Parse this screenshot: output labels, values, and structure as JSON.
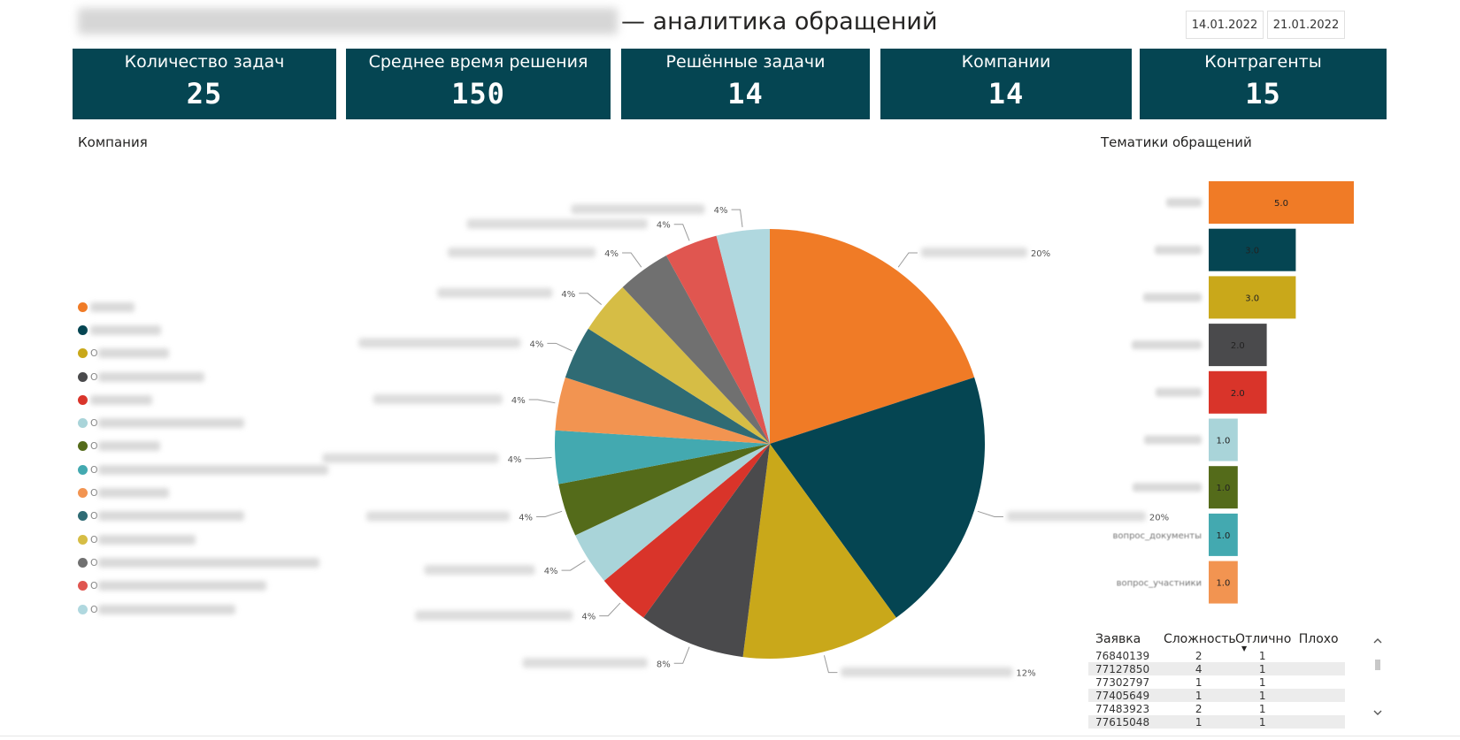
{
  "header": {
    "title_suffix": "— аналитика обращений",
    "date_from": "14.01.2022",
    "date_to": "21.01.2022"
  },
  "cards": [
    {
      "label": "Количество задач",
      "value": "25"
    },
    {
      "label": "Среднее время решения",
      "value": "150"
    },
    {
      "label": "Решённые задачи",
      "value": "14"
    },
    {
      "label": "Компании",
      "value": "14"
    },
    {
      "label": "Контрагенты",
      "value": "15"
    }
  ],
  "company_section_label": "Компания",
  "topics_section_label": "Тематики обращений",
  "legend": [
    {
      "first": "",
      "color": "#F07B26"
    },
    {
      "first": "",
      "color": "#054552"
    },
    {
      "first": "О",
      "color": "#C9A81A"
    },
    {
      "first": "О",
      "color": "#4A4A4C"
    },
    {
      "first": "",
      "color": "#D9342A"
    },
    {
      "first": "О",
      "color": "#A9D4D9"
    },
    {
      "first": "О",
      "color": "#546B1A"
    },
    {
      "first": "О",
      "color": "#43A9B0"
    },
    {
      "first": "О",
      "color": "#F29451"
    },
    {
      "first": "О",
      "color": "#2F6B74"
    },
    {
      "first": "О",
      "color": "#D6BD45"
    },
    {
      "first": "О",
      "color": "#707070"
    },
    {
      "first": "О",
      "color": "#E05650"
    },
    {
      "first": "О",
      "color": "#B0D8DF"
    }
  ],
  "chart_data": [
    {
      "type": "pie",
      "title": "Компания",
      "slices": [
        {
          "value": 20,
          "label": "20%",
          "color": "#F07B26"
        },
        {
          "value": 20,
          "label": "20%",
          "color": "#054552"
        },
        {
          "value": 12,
          "label": "12%",
          "color": "#C9A81A"
        },
        {
          "value": 8,
          "label": "8%",
          "color": "#4A4A4C"
        },
        {
          "value": 4,
          "label": "4%",
          "color": "#D9342A"
        },
        {
          "value": 4,
          "label": "4%",
          "color": "#A9D4D9"
        },
        {
          "value": 4,
          "label": "4%",
          "color": "#546B1A"
        },
        {
          "value": 4,
          "label": "4%",
          "color": "#43A9B0"
        },
        {
          "value": 4,
          "label": "4%",
          "color": "#F29451"
        },
        {
          "value": 4,
          "label": "4%",
          "color": "#2F6B74"
        },
        {
          "value": 4,
          "label": "4%",
          "color": "#D6BD45"
        },
        {
          "value": 4,
          "label": "4%",
          "color": "#707070"
        },
        {
          "value": 4,
          "label": "4%",
          "color": "#E05650"
        },
        {
          "value": 4,
          "label": "4%",
          "color": "#B0D8DF"
        }
      ]
    },
    {
      "type": "bar",
      "title": "Тематики обращений",
      "orientation": "horizontal",
      "categories": [
        "",
        "",
        "",
        "",
        "",
        "",
        "",
        "вопрос_документы",
        "вопрос_участники"
      ],
      "values": [
        5.0,
        3.0,
        3.0,
        2.0,
        2.0,
        1.0,
        1.0,
        1.0,
        1.0
      ],
      "value_labels": [
        "5.0",
        "3.0",
        "3.0",
        "2.0",
        "2.0",
        "1.0",
        "1.0",
        "1.0",
        "1.0"
      ],
      "colors": [
        "#F07B26",
        "#054552",
        "#C9A81A",
        "#4A4A4C",
        "#D9342A",
        "#A9D4D9",
        "#546B1A",
        "#43A9B0",
        "#F29451"
      ],
      "label_colors": [
        "#222",
        "#222",
        "#222",
        "#222",
        "#222",
        "#222",
        "#222",
        "#222",
        "#222"
      ]
    }
  ],
  "table": {
    "headers": [
      "Заявка",
      "Сложность",
      "Отлично",
      "Плохо"
    ],
    "rows": [
      [
        "76840139",
        "2",
        "1",
        ""
      ],
      [
        "77127850",
        "4",
        "1",
        ""
      ],
      [
        "77302797",
        "1",
        "1",
        ""
      ],
      [
        "77405649",
        "1",
        "1",
        ""
      ],
      [
        "77483923",
        "2",
        "1",
        ""
      ],
      [
        "77615048",
        "1",
        "1",
        ""
      ]
    ]
  }
}
